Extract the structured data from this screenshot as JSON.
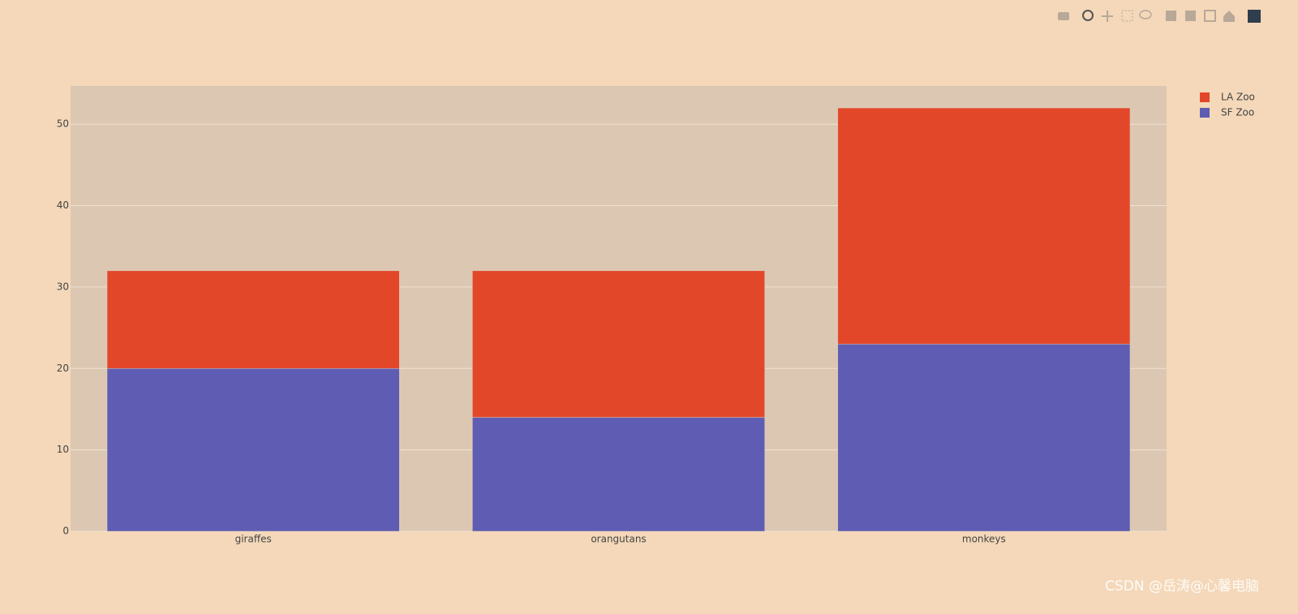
{
  "chart_data": {
    "type": "bar",
    "barmode": "stack",
    "categories": [
      "giraffes",
      "orangutans",
      "monkeys"
    ],
    "series": [
      {
        "name": "SF Zoo",
        "color": "#5f5cb3",
        "values": [
          20,
          14,
          23
        ]
      },
      {
        "name": "LA Zoo",
        "color": "#e3472a",
        "values": [
          12,
          18,
          29
        ]
      }
    ],
    "ylim": [
      0,
      54.7
    ],
    "yticks": [
      0,
      10,
      20,
      30,
      40,
      50
    ],
    "grid": true,
    "legend": "top-right"
  },
  "watermark": "CSDN @岳涛@心馨电脑"
}
